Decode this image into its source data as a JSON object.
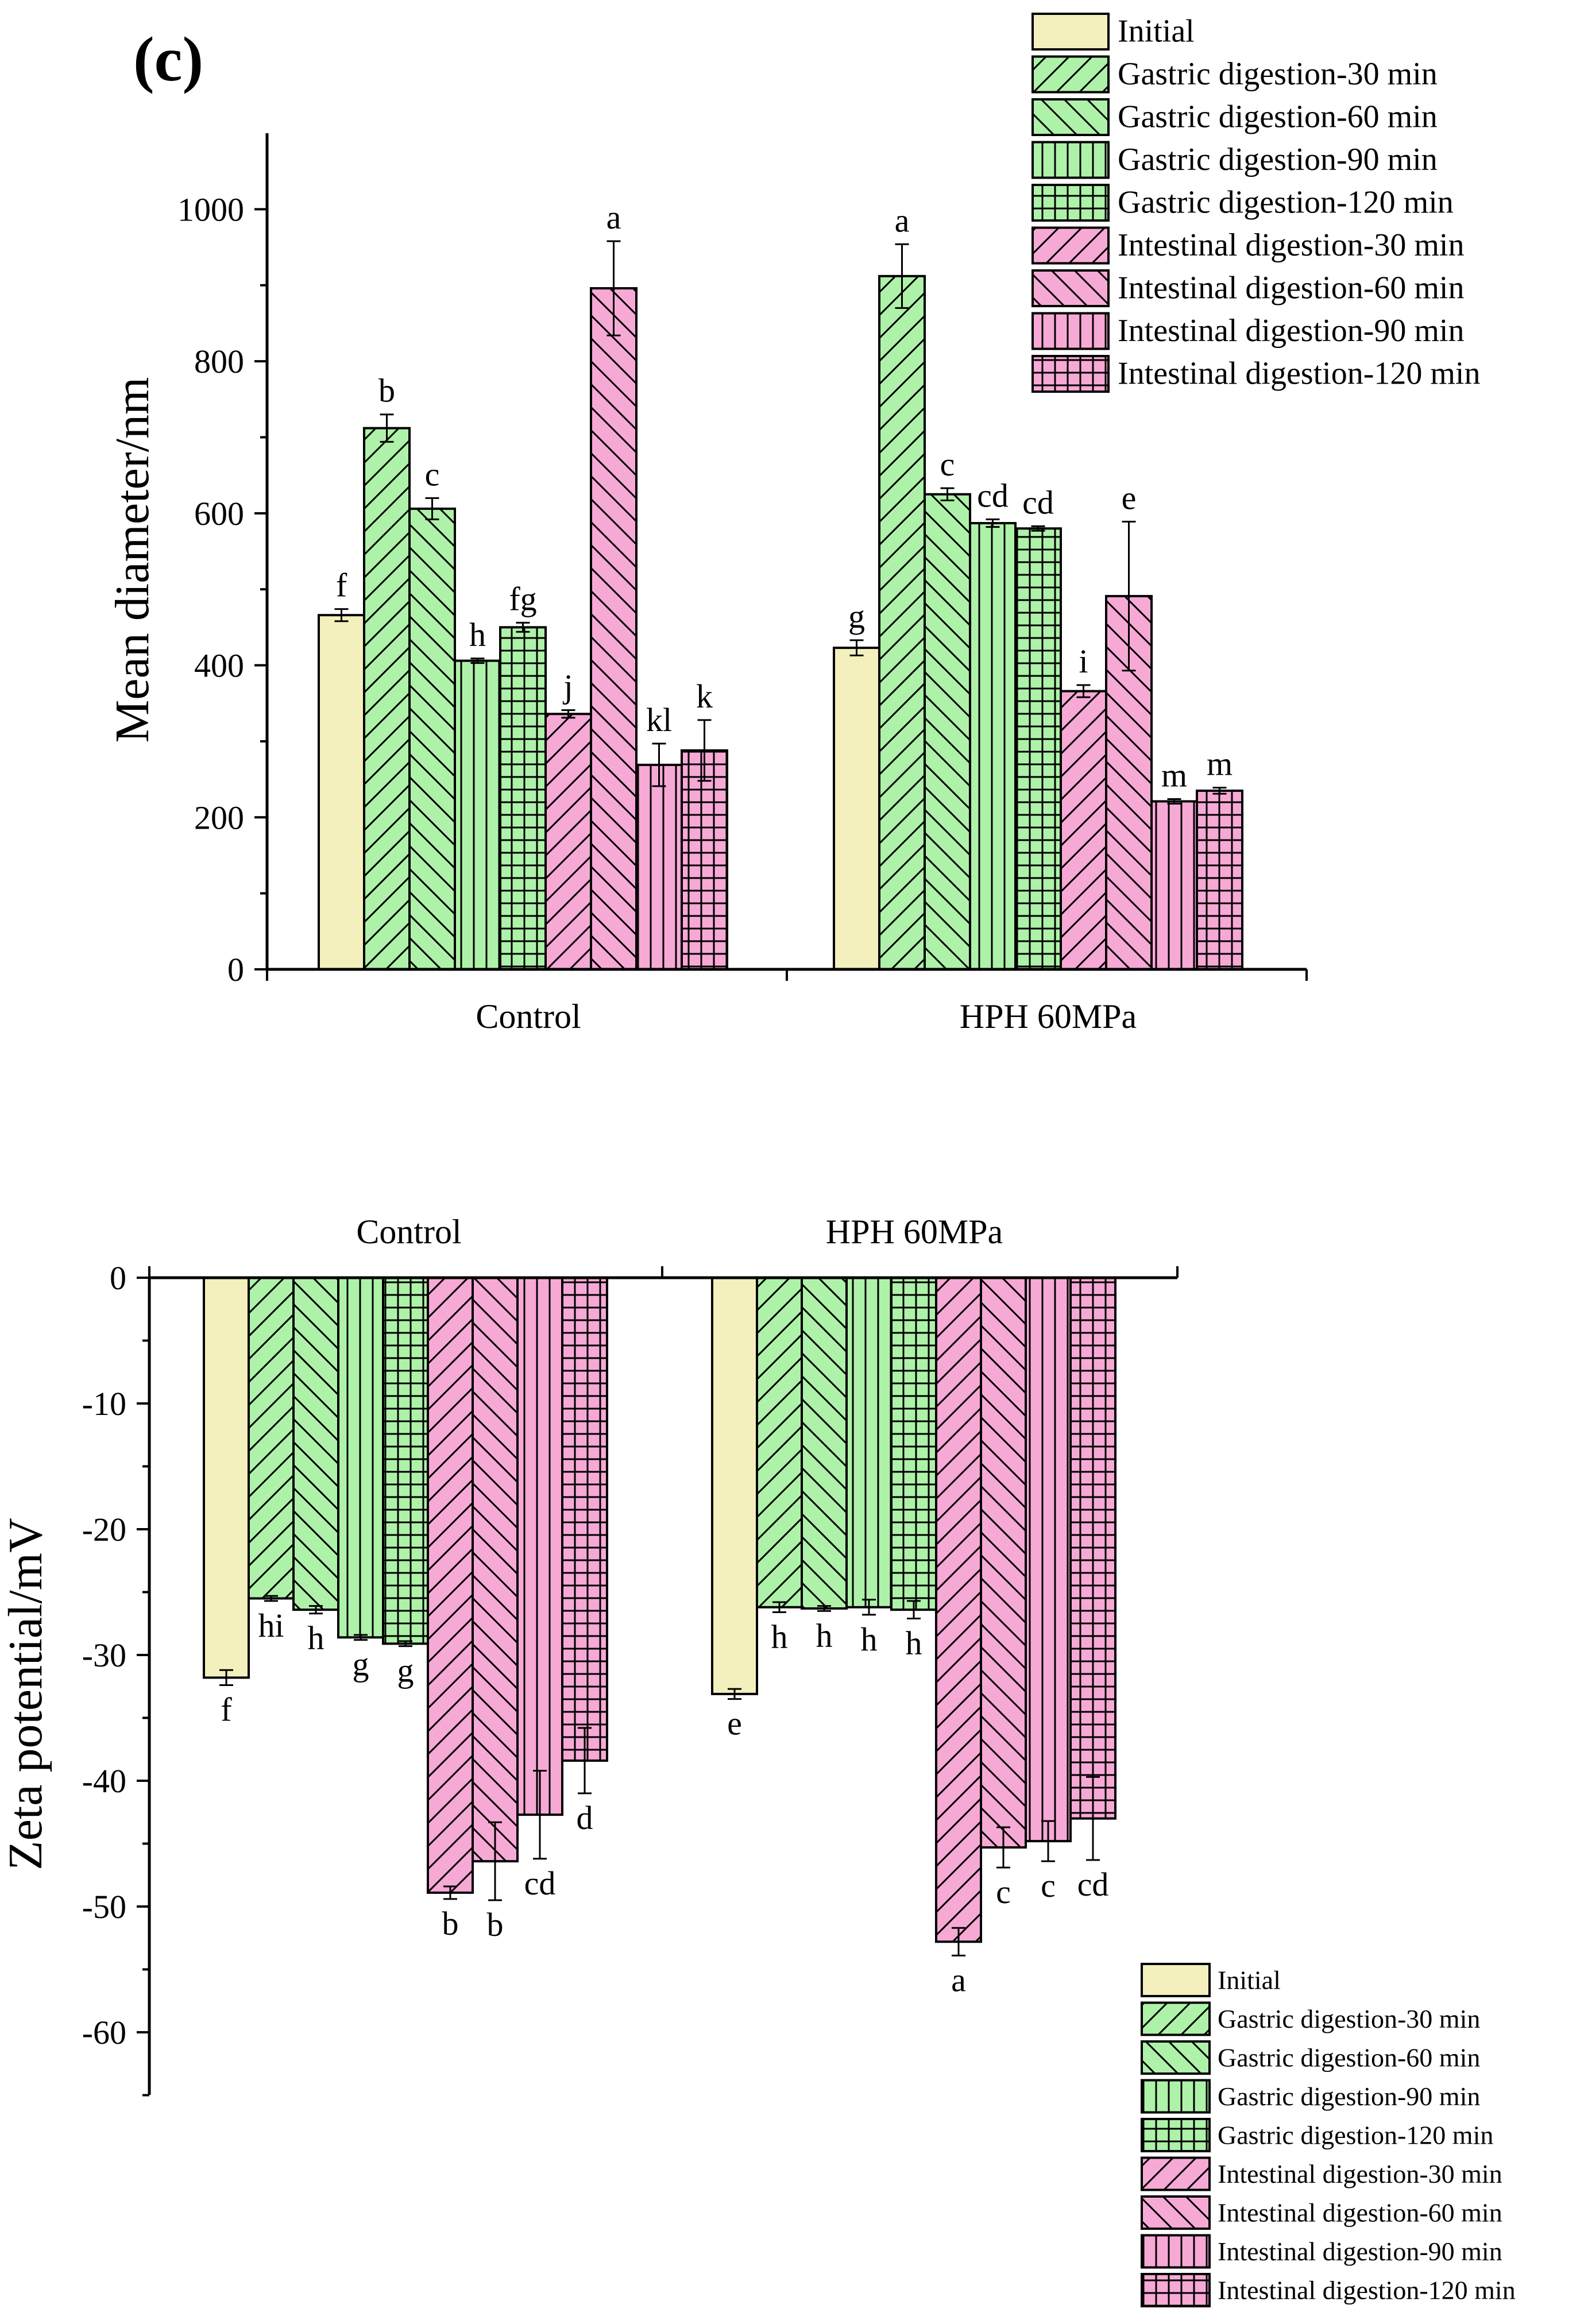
{
  "panel_label": "(c)",
  "series_names": [
    "Initial",
    "Gastric digestion-30 min",
    "Gastric digestion-60 min",
    "Gastric digestion-90 min",
    "Gastric digestion-120 min",
    "Intestinal digestion-30 min",
    "Intestinal digestion-60 min",
    "Intestinal digestion-90 min",
    "Intestinal digestion-120 min"
  ],
  "series_colors": [
    "#f3f0bd",
    "#aef2a9",
    "#aef2a9",
    "#aef2a9",
    "#aef2a9",
    "#f7a9d6",
    "#f7a9d6",
    "#f7a9d6",
    "#f7a9d6"
  ],
  "series_patterns": [
    "none",
    "fwd",
    "back",
    "vert",
    "grid",
    "fwd",
    "back",
    "vert",
    "grid"
  ],
  "chart_data": [
    {
      "type": "bar",
      "title": "",
      "xlabel": "",
      "ylabel": "Mean diameter/nm",
      "ylim": [
        0,
        1100
      ],
      "yticks": [
        0,
        200,
        400,
        600,
        800,
        1000
      ],
      "ytick_labels": [
        "0",
        "200",
        "400",
        "600",
        "800",
        "1000"
      ],
      "categories": [
        "Control",
        "HPH 60MPa"
      ],
      "legend": "top-right",
      "series": [
        {
          "name": "Initial",
          "values": [
            466,
            423
          ],
          "errors": [
            8,
            10
          ],
          "labels": [
            "f",
            "g"
          ]
        },
        {
          "name": "Gastric digestion-30 min",
          "values": [
            712,
            912
          ],
          "errors": [
            18,
            42
          ],
          "labels": [
            "b",
            "a"
          ]
        },
        {
          "name": "Gastric digestion-60 min",
          "values": [
            606,
            625
          ],
          "errors": [
            14,
            8
          ],
          "labels": [
            "c",
            "c"
          ]
        },
        {
          "name": "Gastric digestion-90 min",
          "values": [
            406,
            587
          ],
          "errors": [
            3,
            5
          ],
          "labels": [
            "h",
            "cd"
          ]
        },
        {
          "name": "Gastric digestion-120 min",
          "values": [
            450,
            580
          ],
          "errors": [
            6,
            3
          ],
          "labels": [
            "fg",
            "cd"
          ]
        },
        {
          "name": "Intestinal digestion-30 min",
          "values": [
            336,
            366
          ],
          "errors": [
            5,
            8
          ],
          "labels": [
            "j",
            "i"
          ]
        },
        {
          "name": "Intestinal digestion-60 min",
          "values": [
            896,
            491
          ],
          "errors": [
            62,
            98
          ],
          "labels": [
            "a",
            "e"
          ]
        },
        {
          "name": "Intestinal digestion-90 min",
          "values": [
            269,
            221
          ],
          "errors": [
            28,
            3
          ],
          "labels": [
            "kl",
            "m"
          ]
        },
        {
          "name": "Intestinal digestion-120 min",
          "values": [
            288,
            235
          ],
          "errors": [
            40,
            4
          ],
          "labels": [
            "k",
            "m"
          ]
        }
      ]
    },
    {
      "type": "bar",
      "title": "",
      "xlabel": "",
      "ylabel": "Zeta potential/mV",
      "ylim": [
        -65,
        0
      ],
      "yticks": [
        0,
        -10,
        -20,
        -30,
        -40,
        -50,
        -60
      ],
      "ytick_labels": [
        "0",
        "-10",
        "-20",
        "-30",
        "-40",
        "-50",
        "-60"
      ],
      "categories": [
        "Control",
        "HPH 60MPa"
      ],
      "legend": "bottom-right",
      "series": [
        {
          "name": "Initial",
          "values": [
            -31.8,
            -33.1
          ],
          "errors": [
            0.6,
            0.4
          ],
          "labels": [
            "f",
            "e"
          ]
        },
        {
          "name": "Gastric digestion-30 min",
          "values": [
            -25.5,
            -26.2
          ],
          "errors": [
            0.2,
            0.4
          ],
          "labels": [
            "hi",
            "h"
          ]
        },
        {
          "name": "Gastric digestion-60 min",
          "values": [
            -26.4,
            -26.3
          ],
          "errors": [
            0.3,
            0.2
          ],
          "labels": [
            "h",
            "h"
          ]
        },
        {
          "name": "Gastric digestion-90 min",
          "values": [
            -28.6,
            -26.2
          ],
          "errors": [
            0.2,
            0.6
          ],
          "labels": [
            "g",
            "h"
          ]
        },
        {
          "name": "Gastric digestion-120 min",
          "values": [
            -29.1,
            -26.4
          ],
          "errors": [
            0.2,
            0.7
          ],
          "labels": [
            "g",
            "h"
          ]
        },
        {
          "name": "Intestinal digestion-30 min",
          "values": [
            -48.9,
            -52.8
          ],
          "errors": [
            0.5,
            1.1
          ],
          "labels": [
            "b",
            "a"
          ]
        },
        {
          "name": "Intestinal digestion-60 min",
          "values": [
            -46.4,
            -45.3
          ],
          "errors": [
            3.1,
            1.6
          ],
          "labels": [
            "b",
            "c"
          ]
        },
        {
          "name": "Intestinal digestion-90 min",
          "values": [
            -42.7,
            -44.8
          ],
          "errors": [
            3.5,
            1.6
          ],
          "labels": [
            "cd",
            "c"
          ]
        },
        {
          "name": "Intestinal digestion-120 min",
          "values": [
            -38.4,
            -43
          ],
          "errors": [
            2.6,
            3.3
          ],
          "labels": [
            "d",
            "cd"
          ]
        }
      ]
    }
  ]
}
